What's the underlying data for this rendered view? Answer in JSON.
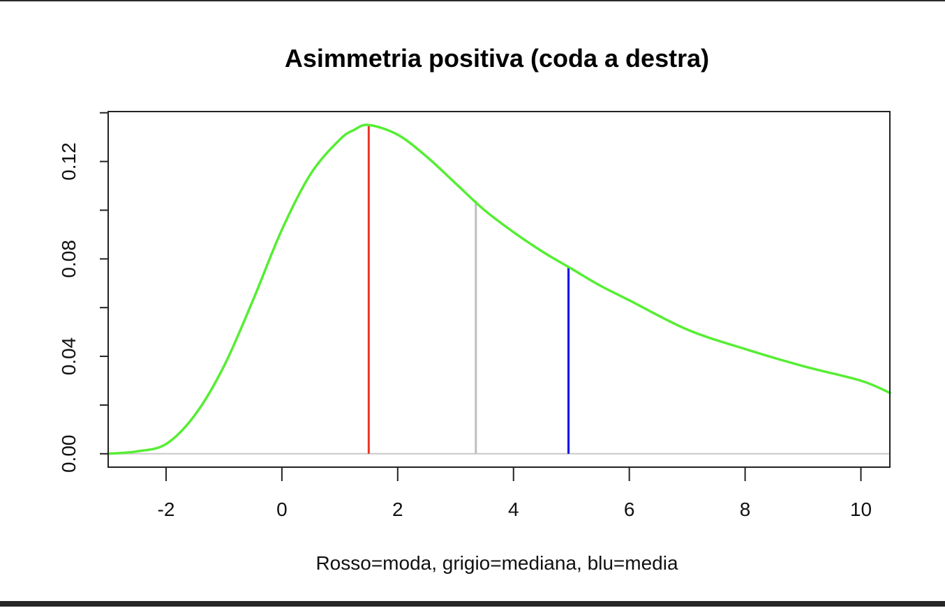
{
  "chart_data": {
    "type": "line",
    "title": "Asimmetria positiva (coda a destra)",
    "xlabel": "Rosso=moda, grigio=mediana, blu=media",
    "ylabel": "",
    "xlim": [
      -3.0,
      10.5
    ],
    "ylim": [
      -0.0055,
      0.1405
    ],
    "x_ticks": [
      -2,
      0,
      2,
      4,
      6,
      8,
      10
    ],
    "x_tick_labels": [
      "-2",
      "0",
      "2",
      "4",
      "6",
      "8",
      "10"
    ],
    "y_ticks": [
      0.0,
      0.02,
      0.04,
      0.06,
      0.08,
      0.1,
      0.12,
      0.14
    ],
    "y_tick_labels": [
      "0.00",
      "",
      "0.04",
      "",
      "0.08",
      "",
      "0.12",
      ""
    ],
    "grid": false,
    "baseline": {
      "y": 0,
      "color": "#c8c8c8"
    },
    "series": [
      {
        "color": "#55ee33",
        "x": [
          -3.0,
          -2.5,
          -2.0,
          -1.5,
          -1.0,
          -0.5,
          0.0,
          0.5,
          1.0,
          1.25,
          1.5,
          2.0,
          2.5,
          3.0,
          3.5,
          4.0,
          4.5,
          5.0,
          5.5,
          6.0,
          7.0,
          8.0,
          9.0,
          10.0,
          10.5
        ],
        "y": [
          0.0,
          0.001,
          0.004,
          0.016,
          0.036,
          0.063,
          0.092,
          0.115,
          0.129,
          0.133,
          0.135,
          0.131,
          0.122,
          0.111,
          0.1,
          0.091,
          0.083,
          0.076,
          0.069,
          0.063,
          0.051,
          0.043,
          0.036,
          0.03,
          0.025
        ]
      }
    ],
    "vlines": [
      {
        "name": "moda",
        "x": 1.5,
        "y_top": 0.135,
        "color": "#ee3322"
      },
      {
        "name": "mediana",
        "x": 3.35,
        "y_top": 0.104,
        "color": "#bebebe"
      },
      {
        "name": "media",
        "x": 4.95,
        "y_top": 0.077,
        "color": "#0000ee"
      }
    ]
  }
}
